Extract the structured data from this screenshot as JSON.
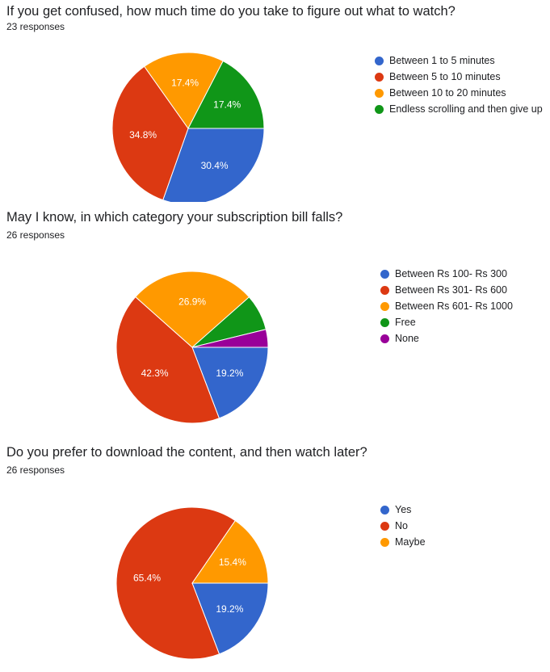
{
  "chart_data": [
    {
      "type": "pie",
      "title": "If you get confused, how much time do you take to figure out what to watch?",
      "subtitle": "23 responses",
      "categories": [
        "Between 1 to 5 minutes",
        "Between 5 to 10 minutes",
        "Between 10 to 20 minutes",
        "Endless scrolling and then give up"
      ],
      "values": [
        30.4,
        34.8,
        17.4,
        17.4
      ],
      "value_labels": [
        "30.4%",
        "34.8%",
        "17.4%",
        "17.4%"
      ],
      "colors": [
        "#3366cc",
        "#dc3912",
        "#ff9900",
        "#109618"
      ],
      "legend": "right"
    },
    {
      "type": "pie",
      "title": "May I know, in which category your subscription bill falls?",
      "subtitle": "26 responses",
      "categories": [
        "Between Rs 100- Rs 300",
        "Between Rs 301- Rs 600",
        "Between Rs 601- Rs 1000",
        "Free",
        "None"
      ],
      "values": [
        19.2,
        42.3,
        26.9,
        7.7,
        3.8
      ],
      "value_labels": [
        "19.2%",
        "42.3%",
        "26.9%",
        "",
        ""
      ],
      "colors": [
        "#3366cc",
        "#dc3912",
        "#ff9900",
        "#109618",
        "#990099"
      ],
      "legend": "right"
    },
    {
      "type": "pie",
      "title": "Do you prefer to download the content, and then watch later?",
      "subtitle": "26 responses",
      "categories": [
        "Yes",
        "No",
        "Maybe"
      ],
      "values": [
        19.2,
        65.4,
        15.4
      ],
      "value_labels": [
        "19.2%",
        "65.4%",
        "15.4%"
      ],
      "colors": [
        "#3366cc",
        "#dc3912",
        "#ff9900"
      ],
      "legend": "right"
    }
  ]
}
